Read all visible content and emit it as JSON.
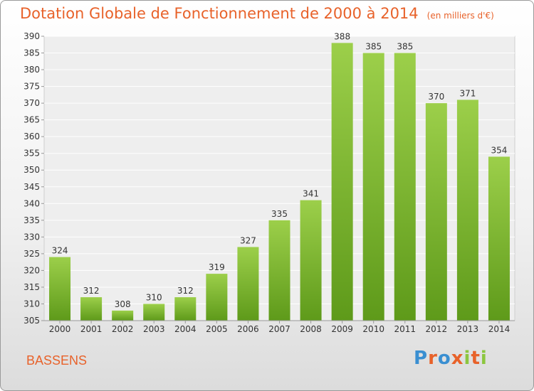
{
  "header": {
    "title": "Dotation Globale de Fonctionnement de 2000 à 2014",
    "unit": "(en milliers d'€)"
  },
  "footer": {
    "commune": "BASSENS",
    "logo": [
      "P",
      "r",
      "o",
      "x",
      "i",
      "t",
      "i"
    ],
    "logo_colors": [
      "#3a8fd1",
      "#e8622a",
      "#3a8fd1",
      "#e8622a",
      "#8cc63f",
      "#e8622a",
      "#8cc63f"
    ]
  },
  "colors": {
    "bar_light": "#9ccf4a",
    "bar_dark": "#5e9a1a",
    "text_accent": "#e8622a"
  },
  "chart_data": {
    "type": "bar",
    "categories": [
      "2000",
      "2001",
      "2002",
      "2003",
      "2004",
      "2005",
      "2006",
      "2007",
      "2008",
      "2009",
      "2010",
      "2011",
      "2012",
      "2013",
      "2014"
    ],
    "values": [
      324,
      312,
      308,
      310,
      312,
      319,
      327,
      335,
      341,
      388,
      385,
      385,
      370,
      371,
      354
    ],
    "ylim": [
      305,
      390
    ],
    "yticks": [
      305,
      310,
      315,
      320,
      325,
      330,
      335,
      340,
      345,
      350,
      355,
      360,
      365,
      370,
      375,
      380,
      385,
      390
    ],
    "grid": true,
    "data_labels": true
  }
}
